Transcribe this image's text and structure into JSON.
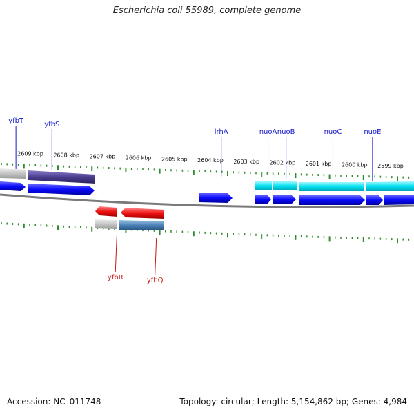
{
  "title": "Escherichia coli 55989, complete genome",
  "footer": {
    "accession": "Accession: NC_011748",
    "summary": "Topology: circular; Length: 5,154,862 bp; Genes: 4,984"
  },
  "colors": {
    "backbone": "#8a8a8a",
    "tick": "#2e8b2e",
    "forward_label": "#1a1acc",
    "reverse_label": "#cc1a1a",
    "blue": "#0a0aff",
    "cyan": "#00e0f0",
    "purple": "#4a3d8f",
    "grey": "#bdbdbd",
    "red": "#ee1111",
    "steel": "#4a7fb5"
  },
  "kbp_labels": [
    "2609 kbp",
    "2608 kbp",
    "2607 kbp",
    "2606 kbp",
    "2605 kbp",
    "2604 kbp",
    "2603 kbp",
    "2602 kbp",
    "2601 kbp",
    "2600 kbp",
    "2599 kbp"
  ],
  "genes_forward": [
    {
      "name": "yfbT",
      "pos_kbp": 2609.4
    },
    {
      "name": "yfbS",
      "pos_kbp": 2608.4
    },
    {
      "name": "lrhA",
      "pos_kbp": 2603.7
    },
    {
      "name": "nuoA",
      "pos_kbp": 2602.4
    },
    {
      "name": "nuoB",
      "pos_kbp": 2601.9
    },
    {
      "name": "nuoC",
      "pos_kbp": 2600.6
    },
    {
      "name": "nuoE",
      "pos_kbp": 2599.5
    }
  ],
  "genes_reverse": [
    {
      "name": "yfbR",
      "pos_kbp": 2606.6
    },
    {
      "name": "yfbQ",
      "pos_kbp": 2605.5
    }
  ]
}
